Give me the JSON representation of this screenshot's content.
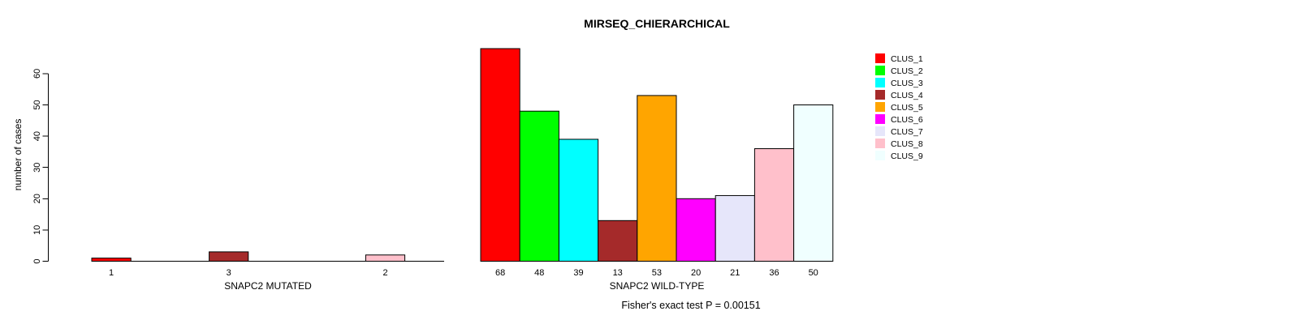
{
  "figure": {
    "background": "#ffffff"
  },
  "chart_data": {
    "type": "bar",
    "title": "MIRSEQ_CHIERARCHICAL",
    "ylabel": "number of cases",
    "ylim": [
      0,
      60
    ],
    "yticks": [
      0,
      10,
      20,
      30,
      40,
      50,
      60
    ],
    "grid": false,
    "legend_position": "right-top",
    "categories": [
      "CLUS_1",
      "CLUS_2",
      "CLUS_3",
      "CLUS_4",
      "CLUS_5",
      "CLUS_6",
      "CLUS_7",
      "CLUS_8",
      "CLUS_9"
    ],
    "palette": [
      "#FF0000",
      "#00FF00",
      "#00FFFF",
      "#A52A2A",
      "#FFA500",
      "#FF00FF",
      "#E6E6FA",
      "#FFC0CB",
      "#F0FFFF"
    ],
    "panels": [
      {
        "xlabel": "SNAPC2 MUTATED",
        "values": [
          1,
          0,
          0,
          3,
          0,
          0,
          0,
          2,
          0
        ],
        "bar_labels": [
          "1",
          "",
          "",
          "3",
          "",
          "",
          "",
          "2",
          ""
        ]
      },
      {
        "xlabel": "SNAPC2 WILD-TYPE",
        "values": [
          68,
          48,
          39,
          13,
          53,
          20,
          21,
          36,
          50
        ],
        "bar_labels": [
          "68",
          "48",
          "39",
          "13",
          "53",
          "20",
          "21",
          "36",
          "50"
        ]
      }
    ],
    "annotation": "Fisher's exact test P = 0.00151"
  }
}
